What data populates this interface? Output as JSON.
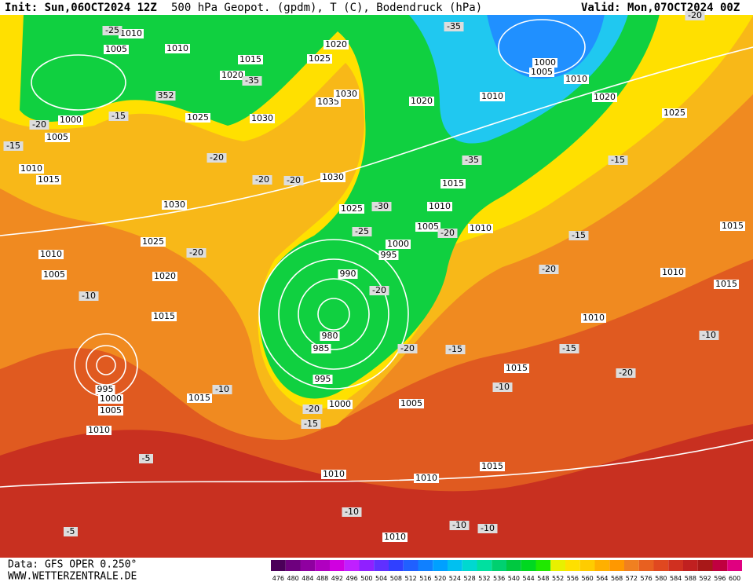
{
  "header": {
    "init": "Init: Sun,06OCT2024 12Z",
    "title": "500 hPa Geopot. (gpdm), T (C), Bodendruck (hPa)",
    "valid": "Valid: Mon,07OCT2024 00Z"
  },
  "footer": {
    "source": "Data: GFS OPER 0.250°",
    "site": "WWW.WETTERZENTRALE.DE"
  },
  "legend": {
    "ticks": [
      476,
      480,
      484,
      488,
      492,
      496,
      500,
      504,
      508,
      512,
      516,
      520,
      524,
      528,
      532,
      536,
      540,
      544,
      548,
      552,
      556,
      560,
      564,
      568,
      572,
      576,
      580,
      584,
      588,
      592,
      596,
      600
    ],
    "colors": [
      "#4b0059",
      "#6e007e",
      "#8f00a0",
      "#b000c0",
      "#d000e0",
      "#c020ff",
      "#9020ff",
      "#6030ff",
      "#3040ff",
      "#2060ff",
      "#1080ff",
      "#00a0ff",
      "#00c0f0",
      "#00d8d0",
      "#00e0a0",
      "#00d070",
      "#00c840",
      "#00d820",
      "#20e800",
      "#e8f000",
      "#ffe000",
      "#ffcc00",
      "#ffb000",
      "#ff9800",
      "#f08020",
      "#e86020",
      "#e04820",
      "#d03020",
      "#c02020",
      "#a81818",
      "#c00040",
      "#e00080"
    ]
  },
  "map": {
    "pressure_labels": [
      "1010",
      "1005",
      "1010",
      "1020",
      "1015",
      "1025",
      "1020",
      "1000",
      "1005",
      "1025",
      "1030",
      "1035",
      "1030",
      "1020",
      "1010",
      "1000",
      "1005",
      "1010",
      "1020",
      "1025",
      "1010",
      "1015",
      "1030",
      "1030",
      "1025",
      "1015",
      "1010",
      "1005",
      "1010",
      "1000",
      "995",
      "1025",
      "1010",
      "1005",
      "1020",
      "990",
      "1015",
      "980",
      "985",
      "995",
      "995",
      "1000",
      "1005",
      "1000",
      "1015",
      "1010",
      "1005",
      "1015",
      "1010",
      "1010",
      "1015",
      "1015",
      "1010",
      "1010",
      "1015",
      "1010"
    ],
    "temp_labels": [
      "-25",
      "-35",
      "-20",
      "-35",
      "-15",
      "-20",
      "-15",
      "-20",
      "-20",
      "-20",
      "-35",
      "-15",
      "-30",
      "-25",
      "-20",
      "-15",
      "-20",
      "-20",
      "-10",
      "-20",
      "-15",
      "-20",
      "-15",
      "-20",
      "-10",
      "-10",
      "-10",
      "-20",
      "-15",
      "-5",
      "-10",
      "-5",
      "-10",
      "-10",
      "352"
    ]
  }
}
